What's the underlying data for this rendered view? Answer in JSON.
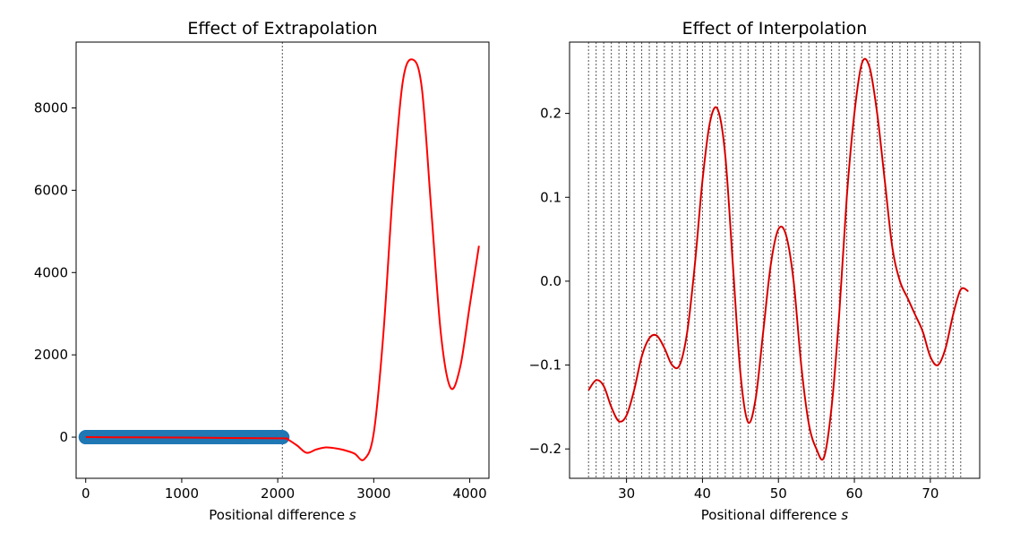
{
  "chart_data": [
    {
      "type": "line",
      "title": "Effect of Extrapolation",
      "xlabel": "Positional difference",
      "xlabel_var": "s",
      "ylabel": "",
      "xlim": [
        -100,
        4200
      ],
      "ylim": [
        -1000,
        9600
      ],
      "xticks": [
        0,
        1000,
        2000,
        3000,
        4000
      ],
      "yticks": [
        0,
        2000,
        4000,
        6000,
        8000
      ],
      "vline_x": [
        2048
      ],
      "colors": {
        "line": "#ff0000",
        "band": "#1f77b4",
        "vline": "#555555"
      },
      "series": [
        {
          "kind": "band",
          "x": [
            0,
            2048
          ],
          "y": [
            0,
            0
          ]
        },
        {
          "kind": "line",
          "x": [
            0,
            500,
            1000,
            1500,
            2048,
            2100,
            2200,
            2300,
            2400,
            2500,
            2600,
            2700,
            2800,
            2900,
            3000,
            3100,
            3200,
            3300,
            3400,
            3500,
            3600,
            3700,
            3800,
            3900,
            4000,
            4096
          ],
          "y": [
            0,
            -5,
            -10,
            -20,
            -30,
            -50,
            -200,
            -380,
            -300,
            -250,
            -270,
            -320,
            -400,
            -540,
            100,
            2500,
            6000,
            8600,
            9180,
            8500,
            5500,
            2500,
            1200,
            1700,
            3200,
            4650
          ]
        }
      ]
    },
    {
      "type": "line",
      "title": "Effect of Interpolation",
      "xlabel": "Positional difference",
      "xlabel_var": "s",
      "ylabel": "",
      "xlim": [
        22.5,
        76.5
      ],
      "ylim": [
        -0.235,
        0.285
      ],
      "xticks": [
        30,
        40,
        50,
        60,
        70
      ],
      "yticks": [
        -0.2,
        -0.1,
        0.0,
        0.1,
        0.2
      ],
      "vline_x": [
        25,
        26,
        27,
        28,
        29,
        30,
        31,
        32,
        33,
        34,
        35,
        36,
        37,
        38,
        39,
        40,
        41,
        42,
        43,
        44,
        45,
        46,
        47,
        48,
        49,
        50,
        51,
        52,
        53,
        54,
        55,
        56,
        57,
        58,
        59,
        60,
        61,
        62,
        63,
        64,
        65,
        66,
        67,
        68,
        69,
        70,
        71,
        72,
        73,
        74
      ],
      "colors": {
        "line": "#ff0000",
        "line_dark": "#7f0000",
        "vline": "#555555"
      },
      "series": [
        {
          "kind": "line",
          "x": [
            25,
            26,
            27,
            28,
            29,
            30,
            31,
            32,
            33,
            34,
            35,
            36,
            37,
            38,
            39,
            40,
            41,
            42,
            43,
            44,
            45,
            46,
            47,
            48,
            49,
            50,
            51,
            52,
            53,
            54,
            55,
            56,
            57,
            58,
            59,
            60,
            61,
            62,
            63,
            64,
            65,
            66,
            67,
            68,
            69,
            70,
            71,
            72,
            73,
            74,
            75
          ],
          "y": [
            -0.13,
            -0.118,
            -0.125,
            -0.15,
            -0.167,
            -0.16,
            -0.13,
            -0.09,
            -0.068,
            -0.065,
            -0.08,
            -0.1,
            -0.1,
            -0.06,
            0.02,
            0.12,
            0.19,
            0.205,
            0.15,
            0.02,
            -0.11,
            -0.168,
            -0.14,
            -0.06,
            0.02,
            0.062,
            0.055,
            0.0,
            -0.1,
            -0.17,
            -0.2,
            -0.21,
            -0.15,
            -0.04,
            0.1,
            0.2,
            0.26,
            0.255,
            0.2,
            0.12,
            0.04,
            0.0,
            -0.02,
            -0.04,
            -0.06,
            -0.09,
            -0.1,
            -0.08,
            -0.04,
            -0.01,
            -0.012
          ]
        }
      ]
    }
  ]
}
